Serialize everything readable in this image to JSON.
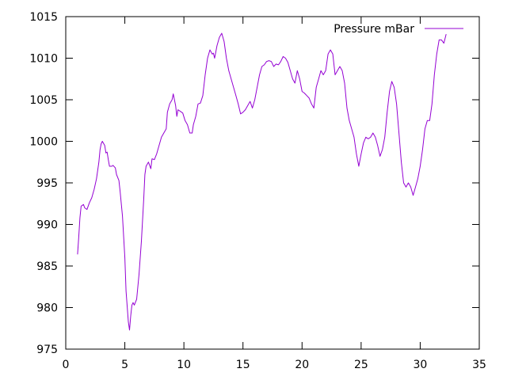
{
  "chart_data": {
    "type": "line",
    "title": "",
    "xlabel": "",
    "ylabel": "",
    "xlim": [
      0,
      35
    ],
    "ylim": [
      975,
      1015
    ],
    "xticks": [
      0,
      5,
      10,
      15,
      20,
      25,
      30,
      35
    ],
    "yticks": [
      975,
      980,
      985,
      990,
      995,
      1000,
      1005,
      1010,
      1015
    ],
    "grid": false,
    "legend_position": "top-right",
    "series": [
      {
        "name": "Pressure mBar",
        "color": "#9400d3",
        "points": [
          [
            1.0,
            986.4
          ],
          [
            1.1,
            988.5
          ],
          [
            1.2,
            990.8
          ],
          [
            1.3,
            992.2
          ],
          [
            1.5,
            992.4
          ],
          [
            1.6,
            992.0
          ],
          [
            1.8,
            991.8
          ],
          [
            2.0,
            992.6
          ],
          [
            2.2,
            993.2
          ],
          [
            2.4,
            994.2
          ],
          [
            2.6,
            995.5
          ],
          [
            2.8,
            997.5
          ],
          [
            2.9,
            999.0
          ],
          [
            3.0,
            999.7
          ],
          [
            3.1,
            1000.0
          ],
          [
            3.3,
            999.5
          ],
          [
            3.4,
            998.6
          ],
          [
            3.5,
            998.7
          ],
          [
            3.6,
            997.8
          ],
          [
            3.7,
            997.0
          ],
          [
            3.9,
            997.0
          ],
          [
            4.0,
            997.1
          ],
          [
            4.2,
            996.8
          ],
          [
            4.3,
            996.0
          ],
          [
            4.5,
            995.3
          ],
          [
            4.6,
            994.0
          ],
          [
            4.8,
            991.0
          ],
          [
            5.0,
            986.0
          ],
          [
            5.1,
            982.0
          ],
          [
            5.3,
            978.3
          ],
          [
            5.4,
            977.3
          ],
          [
            5.5,
            979.0
          ],
          [
            5.6,
            980.3
          ],
          [
            5.7,
            980.6
          ],
          [
            5.8,
            980.3
          ],
          [
            6.0,
            981.0
          ],
          [
            6.2,
            984.0
          ],
          [
            6.4,
            988.0
          ],
          [
            6.6,
            993.0
          ],
          [
            6.7,
            996.0
          ],
          [
            6.8,
            997.0
          ],
          [
            7.0,
            997.5
          ],
          [
            7.2,
            996.7
          ],
          [
            7.3,
            997.9
          ],
          [
            7.5,
            997.8
          ],
          [
            7.7,
            998.5
          ],
          [
            7.9,
            999.5
          ],
          [
            8.1,
            1000.5
          ],
          [
            8.3,
            1001.0
          ],
          [
            8.5,
            1001.5
          ],
          [
            8.6,
            1003.5
          ],
          [
            8.8,
            1004.5
          ],
          [
            9.0,
            1005.0
          ],
          [
            9.1,
            1005.7
          ],
          [
            9.3,
            1004.3
          ],
          [
            9.4,
            1003.0
          ],
          [
            9.5,
            1003.8
          ],
          [
            9.7,
            1003.6
          ],
          [
            9.9,
            1003.4
          ],
          [
            10.1,
            1002.5
          ],
          [
            10.3,
            1002.0
          ],
          [
            10.5,
            1001.0
          ],
          [
            10.7,
            1001.0
          ],
          [
            10.8,
            1002.0
          ],
          [
            11.0,
            1003.0
          ],
          [
            11.2,
            1004.5
          ],
          [
            11.4,
            1004.6
          ],
          [
            11.6,
            1005.5
          ],
          [
            11.8,
            1008.0
          ],
          [
            12.0,
            1010.0
          ],
          [
            12.2,
            1011.0
          ],
          [
            12.4,
            1010.5
          ],
          [
            12.5,
            1010.6
          ],
          [
            12.6,
            1010.0
          ],
          [
            12.8,
            1011.5
          ],
          [
            13.0,
            1012.5
          ],
          [
            13.2,
            1013.0
          ],
          [
            13.4,
            1012.0
          ],
          [
            13.6,
            1010.0
          ],
          [
            13.8,
            1008.5
          ],
          [
            14.0,
            1007.5
          ],
          [
            14.2,
            1006.5
          ],
          [
            14.4,
            1005.5
          ],
          [
            14.6,
            1004.5
          ],
          [
            14.8,
            1003.3
          ],
          [
            15.0,
            1003.5
          ],
          [
            15.2,
            1003.8
          ],
          [
            15.4,
            1004.3
          ],
          [
            15.6,
            1004.8
          ],
          [
            15.8,
            1004.0
          ],
          [
            16.0,
            1005.0
          ],
          [
            16.2,
            1006.5
          ],
          [
            16.4,
            1008.0
          ],
          [
            16.6,
            1009.0
          ],
          [
            16.8,
            1009.2
          ],
          [
            17.0,
            1009.6
          ],
          [
            17.2,
            1009.7
          ],
          [
            17.4,
            1009.6
          ],
          [
            17.6,
            1009.0
          ],
          [
            17.8,
            1009.3
          ],
          [
            18.0,
            1009.2
          ],
          [
            18.2,
            1009.6
          ],
          [
            18.4,
            1010.2
          ],
          [
            18.6,
            1010.0
          ],
          [
            18.8,
            1009.5
          ],
          [
            19.0,
            1008.5
          ],
          [
            19.2,
            1007.5
          ],
          [
            19.4,
            1007.0
          ],
          [
            19.6,
            1008.5
          ],
          [
            19.8,
            1007.5
          ],
          [
            20.0,
            1006.0
          ],
          [
            20.2,
            1005.8
          ],
          [
            20.4,
            1005.5
          ],
          [
            20.6,
            1005.2
          ],
          [
            20.8,
            1004.5
          ],
          [
            21.0,
            1004.0
          ],
          [
            21.2,
            1006.5
          ],
          [
            21.4,
            1007.5
          ],
          [
            21.6,
            1008.5
          ],
          [
            21.8,
            1008.0
          ],
          [
            22.0,
            1008.5
          ],
          [
            22.2,
            1010.5
          ],
          [
            22.4,
            1011.0
          ],
          [
            22.6,
            1010.5
          ],
          [
            22.8,
            1008.0
          ],
          [
            23.0,
            1008.5
          ],
          [
            23.2,
            1009.0
          ],
          [
            23.4,
            1008.5
          ],
          [
            23.6,
            1007.0
          ],
          [
            23.8,
            1004.0
          ],
          [
            24.0,
            1002.5
          ],
          [
            24.2,
            1001.5
          ],
          [
            24.4,
            1000.5
          ],
          [
            24.6,
            998.5
          ],
          [
            24.8,
            997.0
          ],
          [
            25.0,
            998.5
          ],
          [
            25.2,
            999.8
          ],
          [
            25.4,
            1000.5
          ],
          [
            25.6,
            1000.3
          ],
          [
            25.8,
            1000.5
          ],
          [
            26.0,
            1001.0
          ],
          [
            26.2,
            1000.5
          ],
          [
            26.4,
            999.5
          ],
          [
            26.6,
            998.2
          ],
          [
            26.8,
            999.0
          ],
          [
            27.0,
            1000.5
          ],
          [
            27.2,
            1003.5
          ],
          [
            27.4,
            1006.0
          ],
          [
            27.6,
            1007.2
          ],
          [
            27.8,
            1006.5
          ],
          [
            28.0,
            1004.5
          ],
          [
            28.2,
            1001.0
          ],
          [
            28.4,
            997.5
          ],
          [
            28.6,
            995.0
          ],
          [
            28.8,
            994.5
          ],
          [
            29.0,
            995.0
          ],
          [
            29.2,
            994.5
          ],
          [
            29.4,
            993.5
          ],
          [
            29.6,
            994.5
          ],
          [
            29.8,
            995.5
          ],
          [
            30.0,
            997.0
          ],
          [
            30.2,
            999.0
          ],
          [
            30.4,
            1001.5
          ],
          [
            30.6,
            1002.5
          ],
          [
            30.8,
            1002.5
          ],
          [
            31.0,
            1004.5
          ],
          [
            31.2,
            1008.0
          ],
          [
            31.4,
            1010.5
          ],
          [
            31.6,
            1012.2
          ],
          [
            31.8,
            1012.2
          ],
          [
            32.0,
            1011.8
          ],
          [
            32.2,
            1012.9
          ]
        ]
      }
    ]
  }
}
